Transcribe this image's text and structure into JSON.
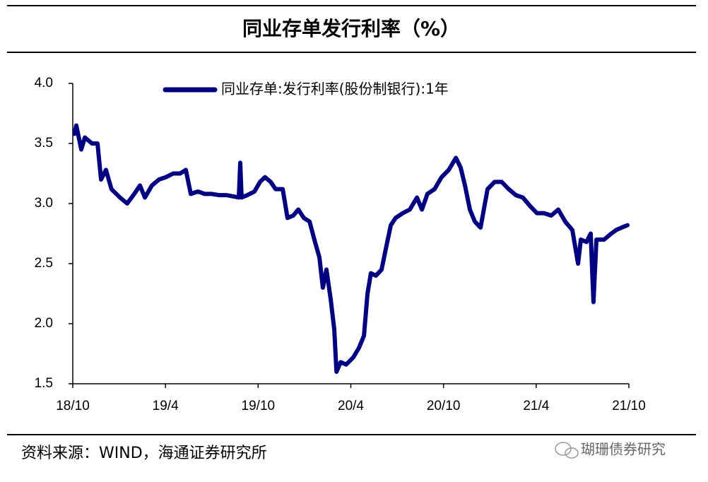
{
  "chart_data": {
    "type": "line",
    "title": "同业存单发行利率（%）",
    "xlim": [
      0,
      36
    ],
    "xticks": [
      {
        "value": 0,
        "label": "18/10"
      },
      {
        "value": 6,
        "label": "19/4"
      },
      {
        "value": 12,
        "label": "19/10"
      },
      {
        "value": 18,
        "label": "20/4"
      },
      {
        "value": 24,
        "label": "20/10"
      },
      {
        "value": 30,
        "label": "21/4"
      },
      {
        "value": 36,
        "label": "21/10"
      }
    ],
    "ylim": [
      1.5,
      4
    ],
    "yticks": [
      {
        "value": 1.5,
        "label": "1.5"
      },
      {
        "value": 2,
        "label": "2.0"
      },
      {
        "value": 2.5,
        "label": "2.5"
      },
      {
        "value": 3,
        "label": "3.0"
      },
      {
        "value": 3.5,
        "label": "3.5"
      },
      {
        "value": 4,
        "label": "4.0"
      }
    ],
    "x": [
      0.1,
      0.23,
      0.55,
      0.78,
      1.24,
      1.6,
      1.83,
      2.15,
      2.5,
      3.06,
      3.52,
      3.98,
      4.35,
      4.67,
      5.12,
      5.58,
      6.04,
      6.5,
      6.95,
      7.32,
      7.64,
      8.1,
      8.55,
      9.0,
      9.47,
      9.93,
      10.38,
      10.75,
      10.84,
      10.93,
      11.3,
      11.76,
      12.12,
      12.44,
      12.81,
      13.13,
      13.59,
      13.9,
      14.27,
      14.6,
      14.96,
      15.33,
      15.64,
      15.97,
      16.19,
      16.42,
      16.7,
      16.93,
      17.07,
      17.34,
      17.7,
      18.16,
      18.53,
      18.85,
      19.08,
      19.3,
      19.62,
      19.99,
      20.31,
      20.59,
      20.9,
      21.36,
      21.82,
      22.28,
      22.6,
      22.96,
      23.42,
      23.88,
      24.34,
      24.8,
      25.11,
      25.39,
      25.71,
      26.03,
      26.4,
      26.85,
      27.31,
      27.77,
      28.22,
      28.68,
      29.14,
      29.6,
      30.05,
      30.51,
      30.97,
      31.43,
      31.88,
      32.34,
      32.71,
      32.89,
      33.26,
      33.53,
      33.71,
      33.9,
      34.4,
      34.86,
      35.18,
      35.54,
      35.91
    ],
    "series": [
      {
        "name": "同业存单:发行利率(股份制银行):1年",
        "color": "#000080",
        "values": [
          3.58,
          3.65,
          3.45,
          3.55,
          3.5,
          3.5,
          3.2,
          3.28,
          3.12,
          3.05,
          3.0,
          3.08,
          3.15,
          3.05,
          3.15,
          3.2,
          3.22,
          3.25,
          3.25,
          3.28,
          3.08,
          3.1,
          3.08,
          3.08,
          3.07,
          3.07,
          3.06,
          3.05,
          3.34,
          3.05,
          3.07,
          3.1,
          3.18,
          3.22,
          3.18,
          3.12,
          3.12,
          2.88,
          2.9,
          2.95,
          2.88,
          2.85,
          2.7,
          2.55,
          2.3,
          2.45,
          2.2,
          1.95,
          1.6,
          1.68,
          1.66,
          1.72,
          1.8,
          1.9,
          2.25,
          2.42,
          2.4,
          2.45,
          2.65,
          2.82,
          2.88,
          2.92,
          2.95,
          3.05,
          2.95,
          3.08,
          3.12,
          3.22,
          3.28,
          3.38,
          3.3,
          3.15,
          2.95,
          2.85,
          2.8,
          3.12,
          3.18,
          3.18,
          3.12,
          3.07,
          3.05,
          2.98,
          2.92,
          2.92,
          2.9,
          2.95,
          2.85,
          2.78,
          2.5,
          2.7,
          2.68,
          2.75,
          2.18,
          2.7,
          2.7,
          2.75,
          2.78,
          2.8,
          2.82
        ]
      }
    ]
  },
  "source": "资料来源：WIND，海通证券研究所",
  "watermark": "瑚珊债券研究"
}
